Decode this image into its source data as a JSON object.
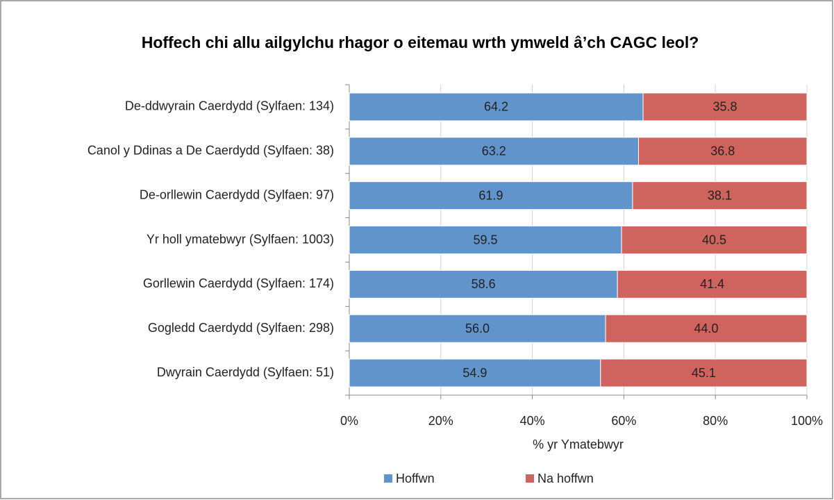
{
  "chart_data": {
    "type": "stacked_barh",
    "title": "Hoffech chi allu ailgylchu rhagor o eitemau wrth ymweld â’ch CAGC leol?",
    "categories": [
      "De-ddwyrain Caerdydd (Sylfaen: 134)",
      "Canol y Ddinas a De Caerdydd (Sylfaen: 38)",
      "De-orllewin Caerdydd (Sylfaen: 97)",
      "Yr holl ymatebwyr (Sylfaen: 1003)",
      "Gorllewin Caerdydd (Sylfaen: 174)",
      "Gogledd Caerdydd (Sylfaen: 298)",
      "Dwyrain Caerdydd (Sylfaen: 51)"
    ],
    "series": [
      {
        "name": "Hoffwn",
        "color": "#6194cb",
        "values": [
          64.2,
          63.2,
          61.9,
          59.5,
          58.6,
          56.0,
          54.9
        ],
        "value_labels": [
          "64.2",
          "63.2",
          "61.9",
          "59.5",
          "58.6",
          "56.0",
          "54.9"
        ]
      },
      {
        "name": "Na hoffwn",
        "color": "#cf635d",
        "values": [
          35.8,
          36.8,
          38.1,
          40.5,
          41.4,
          44.0,
          45.1
        ],
        "value_labels": [
          "35.8",
          "36.8",
          "38.1",
          "40.5",
          "41.4",
          "44.0",
          "45.1"
        ]
      }
    ],
    "xlabel": "% yr Ymatebwyr",
    "xlim": [
      0,
      100
    ],
    "xticks": [
      {
        "value": 0,
        "label": "0%"
      },
      {
        "value": 20,
        "label": "20%"
      },
      {
        "value": 40,
        "label": "40%"
      },
      {
        "value": 60,
        "label": "60%"
      },
      {
        "value": 80,
        "label": "80%"
      },
      {
        "value": 100,
        "label": "100%"
      }
    ],
    "grid": true,
    "legend": "bottom"
  }
}
